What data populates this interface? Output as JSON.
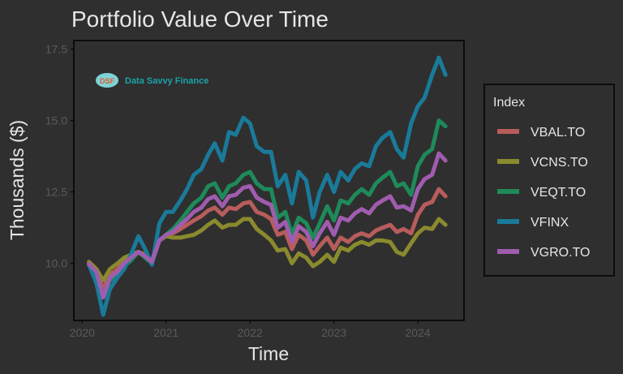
{
  "chart_data": {
    "type": "line",
    "title": "Portfolio Value Over Time",
    "xlabel": "Time",
    "ylabel": "Thousands ($)",
    "xlim": [
      2019.9,
      2024.55
    ],
    "ylim": [
      8.0,
      17.8
    ],
    "x_ticks": [
      2020,
      2021,
      2022,
      2023,
      2024
    ],
    "x_tick_labels": [
      "2020",
      "2021",
      "2022",
      "2023",
      "2024"
    ],
    "y_ticks": [
      10.0,
      12.5,
      15.0,
      17.5
    ],
    "y_tick_labels": [
      "10.0",
      "12.5",
      "15.0",
      "17.5"
    ],
    "legend_title": "Index",
    "legend_position": "right",
    "grid": false,
    "watermark": {
      "badge": "DSF",
      "text": "Data Savvy Finance"
    },
    "x": [
      2020.08,
      2020.17,
      2020.25,
      2020.33,
      2020.42,
      2020.5,
      2020.58,
      2020.67,
      2020.75,
      2020.83,
      2020.92,
      2021.0,
      2021.08,
      2021.17,
      2021.25,
      2021.33,
      2021.42,
      2021.5,
      2021.58,
      2021.67,
      2021.75,
      2021.83,
      2021.92,
      2022.0,
      2022.08,
      2022.17,
      2022.25,
      2022.33,
      2022.42,
      2022.5,
      2022.58,
      2022.67,
      2022.75,
      2022.83,
      2022.92,
      2023.0,
      2023.08,
      2023.17,
      2023.25,
      2023.33,
      2023.42,
      2023.5,
      2023.58,
      2023.67,
      2023.75,
      2023.83,
      2023.92,
      2024.0,
      2024.08,
      2024.17,
      2024.25,
      2024.33
    ],
    "series": [
      {
        "name": "VBAL.TO",
        "color": "#b85c5c",
        "values": [
          10.0,
          9.7,
          9.1,
          9.6,
          9.8,
          10.1,
          10.2,
          10.4,
          10.3,
          10.1,
          10.8,
          11.0,
          11.05,
          11.2,
          11.35,
          11.5,
          11.65,
          11.85,
          11.95,
          11.7,
          11.95,
          11.9,
          12.1,
          12.15,
          11.8,
          11.7,
          11.55,
          11.0,
          11.1,
          10.5,
          11.0,
          10.8,
          10.3,
          10.6,
          10.9,
          10.5,
          10.9,
          10.75,
          10.95,
          11.05,
          10.95,
          11.15,
          11.25,
          11.35,
          11.1,
          11.2,
          11.05,
          11.7,
          12.05,
          12.15,
          12.6,
          12.35
        ]
      },
      {
        "name": "VCNS.TO",
        "color": "#8a8a2e",
        "values": [
          10.05,
          9.8,
          9.4,
          9.8,
          10.0,
          10.2,
          10.3,
          10.4,
          10.3,
          10.1,
          10.8,
          10.95,
          10.9,
          10.9,
          10.95,
          11.0,
          11.15,
          11.35,
          11.5,
          11.25,
          11.35,
          11.35,
          11.55,
          11.55,
          11.2,
          11.0,
          10.8,
          10.45,
          10.5,
          10.0,
          10.35,
          10.2,
          9.9,
          10.05,
          10.3,
          10.05,
          10.55,
          10.45,
          10.65,
          10.75,
          10.65,
          10.8,
          10.8,
          10.75,
          10.4,
          10.3,
          10.7,
          11.05,
          11.25,
          11.2,
          11.55,
          11.35
        ]
      },
      {
        "name": "VEQT.TO",
        "color": "#1e8a5a",
        "values": [
          9.95,
          9.6,
          8.9,
          9.4,
          9.6,
          9.9,
          10.1,
          10.4,
          10.2,
          10.0,
          10.8,
          11.0,
          11.2,
          11.5,
          11.8,
          12.1,
          12.3,
          12.7,
          12.8,
          12.3,
          12.7,
          12.8,
          13.1,
          13.2,
          12.8,
          12.6,
          12.6,
          11.6,
          11.8,
          11.0,
          11.6,
          11.4,
          10.9,
          11.4,
          12.0,
          11.5,
          12.2,
          12.1,
          12.4,
          12.6,
          12.4,
          12.8,
          13.0,
          13.2,
          12.7,
          12.8,
          12.4,
          13.4,
          13.8,
          14.0,
          15.0,
          14.8
        ]
      },
      {
        "name": "VFINX",
        "color": "#1a7a9a",
        "values": [
          9.95,
          9.3,
          8.2,
          9.1,
          9.5,
          9.8,
          10.3,
          10.95,
          10.5,
          9.95,
          11.4,
          11.8,
          11.8,
          12.2,
          12.6,
          13.1,
          13.3,
          13.8,
          14.2,
          13.6,
          14.6,
          14.5,
          15.1,
          14.9,
          14.1,
          13.9,
          13.9,
          12.7,
          13.1,
          12.1,
          13.2,
          12.9,
          11.6,
          12.5,
          13.1,
          12.5,
          13.2,
          12.9,
          13.3,
          13.5,
          13.4,
          14.1,
          14.4,
          14.6,
          14.0,
          13.7,
          14.9,
          15.5,
          15.8,
          16.6,
          17.2,
          16.6
        ]
      },
      {
        "name": "VGRO.TO",
        "color": "#a05cae",
        "values": [
          9.98,
          9.7,
          8.8,
          9.5,
          9.7,
          10.0,
          10.2,
          10.4,
          10.25,
          10.05,
          10.8,
          11.0,
          11.1,
          11.35,
          11.55,
          11.8,
          11.95,
          12.25,
          12.35,
          12.0,
          12.35,
          12.4,
          12.65,
          12.7,
          12.3,
          12.15,
          12.05,
          11.25,
          11.45,
          10.75,
          11.3,
          11.1,
          10.6,
          11.05,
          11.45,
          11.0,
          11.6,
          11.5,
          11.75,
          11.9,
          11.75,
          12.05,
          12.2,
          12.35,
          11.95,
          12.0,
          11.85,
          12.6,
          12.95,
          13.1,
          13.85,
          13.6
        ]
      }
    ]
  }
}
